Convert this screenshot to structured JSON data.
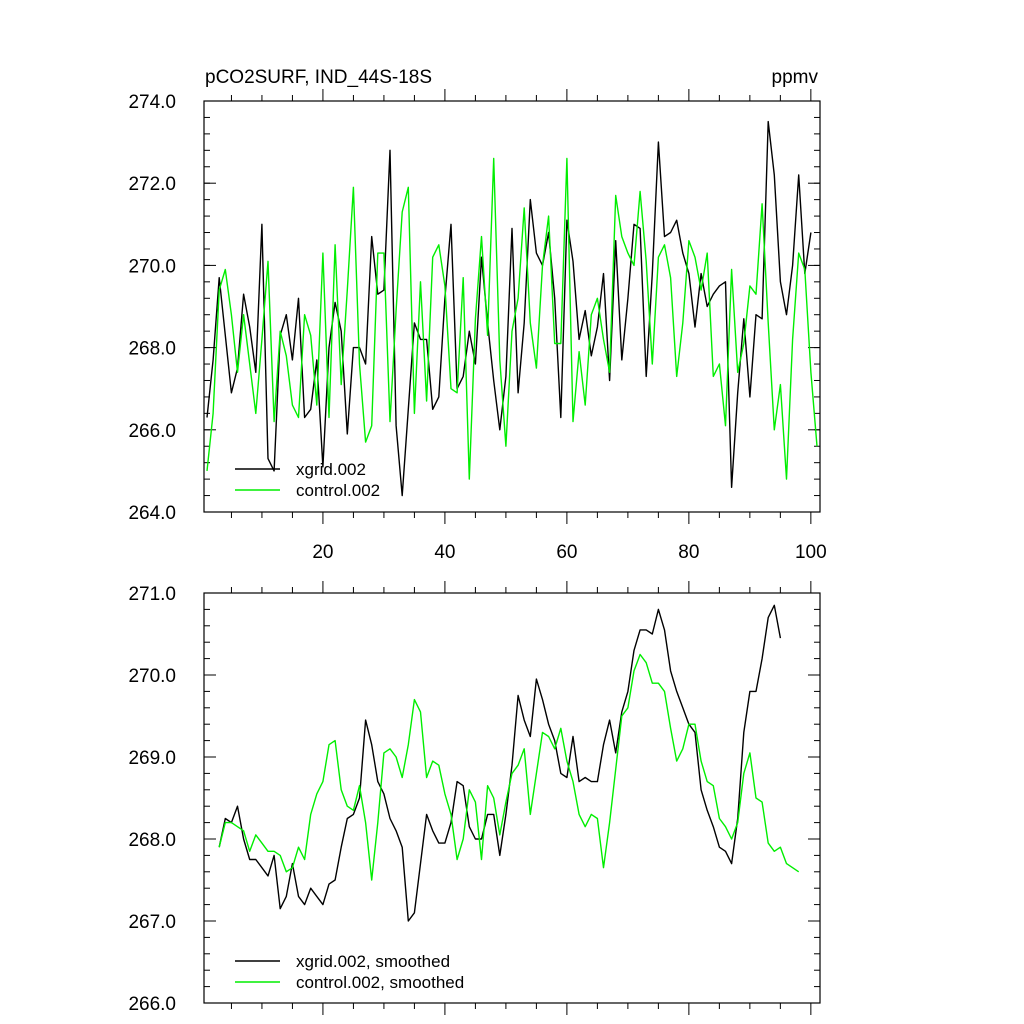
{
  "colors": {
    "series_black": "#000000",
    "series_green": "#00ee00",
    "axes": "#000000",
    "background": "#ffffff"
  },
  "chart_data": [
    {
      "type": "line",
      "title": "pCO2SURF, IND_44S-18S",
      "units": "ppmv",
      "xlim": [
        0.5,
        101.5
      ],
      "ylim": [
        264.0,
        274.0
      ],
      "xticks": [
        20,
        40,
        60,
        80,
        100
      ],
      "xtick_labels": [
        "20",
        "40",
        "60",
        "80",
        "100"
      ],
      "yticks": [
        264,
        266,
        268,
        270,
        272,
        274
      ],
      "ytick_labels": [
        "264.0",
        "266.0",
        "268.0",
        "270.0",
        "272.0",
        "274.0"
      ],
      "legend_position": "bottom-left",
      "x_start": 1,
      "series": [
        {
          "name": "xgrid.002",
          "color": "#000000",
          "values": [
            266.3,
            267.7,
            269.7,
            268.3,
            266.9,
            267.5,
            269.3,
            268.5,
            267.4,
            271.0,
            265.3,
            265.0,
            268.3,
            268.8,
            267.7,
            269.2,
            266.3,
            266.5,
            267.7,
            265.1,
            268.0,
            269.1,
            268.4,
            265.9,
            268.0,
            268.0,
            267.6,
            270.7,
            269.3,
            269.4,
            272.8,
            266.1,
            264.4,
            266.5,
            268.6,
            268.2,
            268.2,
            266.5,
            266.8,
            269.2,
            271.0,
            267.0,
            267.3,
            268.4,
            267.6,
            270.2,
            268.6,
            267.2,
            266.0,
            267.3,
            270.9,
            266.9,
            268.6,
            271.6,
            270.3,
            270.0,
            270.8,
            269.2,
            266.3,
            271.1,
            270.1,
            268.2,
            268.9,
            267.8,
            268.5,
            269.8,
            267.2,
            270.6,
            267.7,
            269.2,
            271.0,
            270.9,
            267.3,
            269.8,
            273.0,
            270.7,
            270.8,
            271.1,
            270.3,
            269.8,
            268.5,
            269.8,
            269.0,
            269.3,
            269.5,
            269.6,
            264.6,
            266.9,
            268.7,
            266.8,
            268.8,
            268.7,
            273.5,
            272.2,
            269.6,
            268.8,
            270.0,
            272.2,
            269.8,
            270.8
          ]
        },
        {
          "name": "control.002",
          "color": "#00ee00",
          "values": [
            265.0,
            266.4,
            269.4,
            269.9,
            268.8,
            267.4,
            268.8,
            267.6,
            266.4,
            268.2,
            270.1,
            266.2,
            268.4,
            267.8,
            266.6,
            266.3,
            268.8,
            268.3,
            266.6,
            270.3,
            266.3,
            270.5,
            267.1,
            269.4,
            271.9,
            267.6,
            265.7,
            266.1,
            270.3,
            270.3,
            266.2,
            268.9,
            271.3,
            271.9,
            266.4,
            269.6,
            266.7,
            270.2,
            270.5,
            269.5,
            267.0,
            266.9,
            269.7,
            264.8,
            268.7,
            270.7,
            268.3,
            272.6,
            267.7,
            265.6,
            268.4,
            269.2,
            271.4,
            268.6,
            267.5,
            270.0,
            271.2,
            268.1,
            268.1,
            272.6,
            266.2,
            267.9,
            266.6,
            268.8,
            269.2,
            268.2,
            267.4,
            271.7,
            270.7,
            270.3,
            270.0,
            271.8,
            270.1,
            267.6,
            270.2,
            270.5,
            269.7,
            267.3,
            268.6,
            270.6,
            270.2,
            269.4,
            270.3,
            267.3,
            267.6,
            266.1,
            269.9,
            267.4,
            268.1,
            269.5,
            269.3,
            271.5,
            268.6,
            266.0,
            267.1,
            264.8,
            268.2,
            270.3,
            269.9,
            267.4,
            265.6
          ]
        }
      ]
    },
    {
      "type": "line",
      "title": "",
      "units": "",
      "xlim": [
        0.5,
        101.5
      ],
      "ylim": [
        266.0,
        271.0
      ],
      "xticks": [
        20,
        40,
        60,
        80,
        100
      ],
      "xtick_labels": [],
      "yticks": [
        266,
        267,
        268,
        269,
        270,
        271
      ],
      "ytick_labels": [
        "266.0",
        "267.0",
        "268.0",
        "269.0",
        "270.0",
        "271.0"
      ],
      "legend_position": "bottom-left",
      "x_start": 3,
      "series": [
        {
          "name": "xgrid.002, smoothed",
          "color": "#000000",
          "values": [
            267.9,
            268.25,
            268.2,
            268.4,
            268.0,
            267.75,
            267.75,
            267.65,
            267.55,
            267.8,
            267.15,
            267.3,
            267.7,
            267.3,
            267.2,
            267.4,
            267.3,
            267.2,
            267.45,
            267.5,
            267.9,
            268.25,
            268.3,
            268.5,
            269.45,
            269.15,
            268.7,
            268.55,
            268.25,
            268.1,
            267.9,
            267.0,
            267.1,
            267.7,
            268.3,
            268.1,
            267.95,
            267.95,
            268.2,
            268.7,
            268.65,
            268.15,
            268.0,
            268.0,
            268.3,
            268.3,
            267.8,
            268.3,
            268.9,
            269.75,
            269.45,
            269.25,
            269.95,
            269.7,
            269.4,
            269.2,
            268.8,
            268.75,
            269.25,
            268.7,
            268.75,
            268.7,
            268.7,
            269.15,
            269.45,
            269.05,
            269.55,
            269.8,
            270.3,
            270.55,
            270.55,
            270.5,
            270.8,
            270.55,
            270.05,
            269.8,
            269.6,
            269.4,
            269.3,
            268.6,
            268.35,
            268.15,
            267.9,
            267.85,
            267.7,
            268.25,
            269.3,
            269.8,
            269.8,
            270.2,
            270.7,
            270.85,
            270.45
          ]
        },
        {
          "name": "control.002, smoothed",
          "color": "#00ee00",
          "values": [
            267.9,
            268.2,
            268.2,
            268.15,
            268.1,
            267.85,
            268.05,
            267.95,
            267.85,
            267.85,
            267.8,
            267.6,
            267.65,
            267.9,
            267.75,
            268.3,
            268.55,
            268.7,
            269.15,
            269.2,
            268.6,
            268.4,
            268.35,
            268.65,
            268.2,
            267.5,
            268.2,
            269.05,
            269.1,
            269.0,
            268.75,
            269.15,
            269.7,
            269.55,
            268.75,
            268.95,
            268.9,
            268.55,
            268.3,
            267.75,
            268.0,
            268.6,
            268.45,
            267.75,
            268.65,
            268.5,
            268.05,
            268.45,
            268.8,
            268.9,
            269.1,
            268.3,
            268.8,
            269.3,
            269.25,
            269.1,
            269.35,
            268.95,
            268.7,
            268.3,
            268.15,
            268.3,
            268.25,
            267.65,
            268.2,
            268.85,
            269.5,
            269.6,
            270.05,
            270.25,
            270.15,
            269.9,
            269.9,
            269.8,
            269.35,
            268.95,
            269.1,
            269.4,
            269.4,
            268.95,
            268.7,
            268.65,
            268.25,
            268.15,
            268.0,
            268.2,
            268.8,
            269.05,
            268.5,
            268.45,
            267.95,
            267.85,
            267.9,
            267.7,
            267.65,
            267.6
          ]
        }
      ]
    }
  ]
}
